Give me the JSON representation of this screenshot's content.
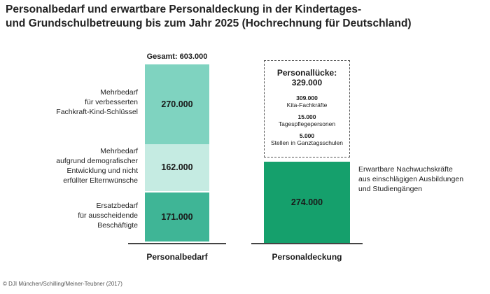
{
  "title_line1": "Personalbedarf und erwartbare Personaldeckung in der Kindertages-",
  "title_line2": "und Grundschulbetreuung bis zum Jahr 2025 (Hochrechnung für Deutschland)",
  "source": "© DJI München/Schilling/Meiner-Teubner (2017)",
  "colors": {
    "seg_top": "#7fd3c0",
    "seg_mid": "#c5ebe2",
    "seg_bottom": "#3fb596",
    "seg_cover": "#15a06c"
  },
  "chart_data": {
    "type": "bar",
    "stacked": true,
    "categories": [
      "Personalbedarf",
      "Personaldeckung"
    ],
    "personalbedarf": {
      "total_label": "Gesamt: 603.000",
      "segments": [
        {
          "value": 171000,
          "display": "171.000",
          "label": [
            "Ersatzbedarf",
            "für ausscheidende",
            "Beschäftigte"
          ]
        },
        {
          "value": 162000,
          "display": "162.000",
          "label": [
            "Mehrbedarf",
            "aufgrund demografischer",
            "Entwicklung und nicht",
            "erfüllter Elternwünsche"
          ]
        },
        {
          "value": 270000,
          "display": "270.000",
          "label": [
            "Mehrbedarf",
            "für verbesserten",
            "Fachkraft-Kind-Schlüssel"
          ]
        }
      ]
    },
    "personaldeckung": {
      "segments": [
        {
          "value": 274000,
          "display": "274.000",
          "label": [
            "Erwartbare Nachwuchskräfte",
            "aus einschlägigen Ausbildungen",
            "und Studiengängen"
          ]
        }
      ],
      "gap": {
        "value": 329000,
        "title": "Personallücke:",
        "total": "329.000",
        "items": [
          {
            "value": "309.000",
            "label": "Kita-Fachkräfte"
          },
          {
            "value": "15.000",
            "label": "Tagespflegepersonen"
          },
          {
            "value": "5.000",
            "label": "Stellen in Ganztagsschulen"
          }
        ]
      }
    }
  }
}
